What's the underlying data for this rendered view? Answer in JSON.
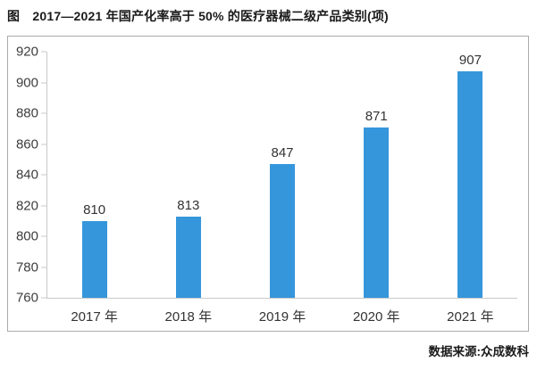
{
  "header": {
    "title": "图　2017—2021 年国产化率高于 50% 的医疗器械二级产品类别(项)"
  },
  "footer": {
    "source": "数据来源:众成数科"
  },
  "colors": {
    "bar": "#3596DB",
    "axis": "#C9C9C9",
    "frame": "#ABABAB",
    "text": "#333333"
  },
  "chart_data": {
    "type": "bar",
    "title": "2017—2021 年国产化率高于 50% 的医疗器械二级产品类别(项)",
    "categories": [
      "2017 年",
      "2018 年",
      "2019 年",
      "2020 年",
      "2021 年"
    ],
    "values": [
      810,
      813,
      847,
      871,
      907
    ],
    "xlabel": "",
    "ylabel": "",
    "ylim": [
      760,
      920
    ],
    "ytick_step": 20,
    "yticks": [
      760,
      780,
      800,
      820,
      840,
      860,
      880,
      900,
      920
    ],
    "grid": false,
    "legend": false,
    "data_labels": true,
    "unit": "项"
  }
}
